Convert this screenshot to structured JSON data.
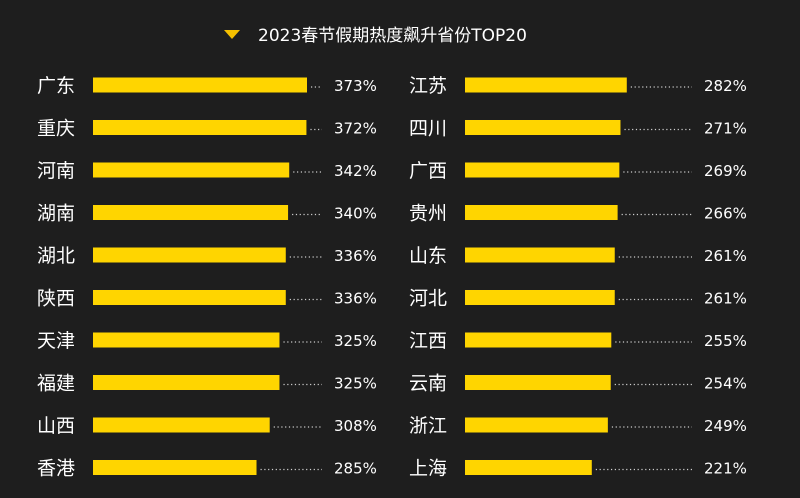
{
  "chart_data": {
    "type": "bar",
    "title": "2023春节假期热度飙升省份TOP20",
    "colors": {
      "bar": "#ffd500",
      "background": "#1e1e1e",
      "text": "#ffffff",
      "marker": "#f5c000"
    },
    "columns": [
      {
        "categories": [
          "广东",
          "重庆",
          "河南",
          "湖南",
          "湖北",
          "陕西",
          "天津",
          "福建",
          "山西",
          "香港"
        ],
        "values": [
          373,
          372,
          342,
          340,
          336,
          336,
          325,
          325,
          308,
          285
        ],
        "labels": [
          "373%",
          "372%",
          "342%",
          "340%",
          "336%",
          "336%",
          "325%",
          "325%",
          "308%",
          "285%"
        ]
      },
      {
        "categories": [
          "江苏",
          "四川",
          "广西",
          "贵州",
          "山东",
          "河北",
          "江西",
          "云南",
          "浙江",
          "上海"
        ],
        "values": [
          282,
          271,
          269,
          266,
          261,
          261,
          255,
          254,
          249,
          221
        ],
        "labels": [
          "282%",
          "271%",
          "269%",
          "266%",
          "261%",
          "261%",
          "255%",
          "254%",
          "249%",
          "221%"
        ]
      }
    ]
  }
}
